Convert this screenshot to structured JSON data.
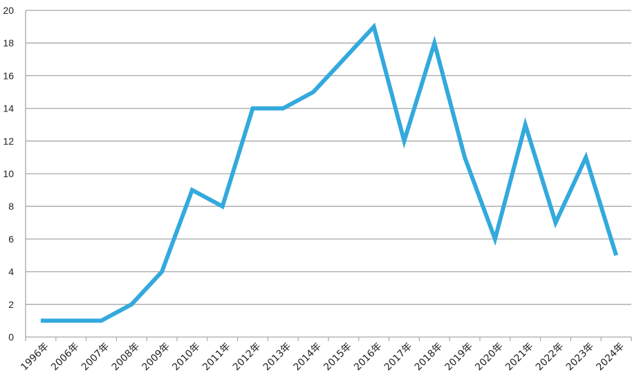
{
  "chart_data": {
    "type": "line",
    "title": "",
    "xlabel": "",
    "ylabel": "",
    "categories": [
      "1996年",
      "2006年",
      "2007年",
      "2008年",
      "2009年",
      "2010年",
      "2011年",
      "2012年",
      "2013年",
      "2014年",
      "2015年",
      "2016年",
      "2017年",
      "2018年",
      "2019年",
      "2020年",
      "2021年",
      "2022年",
      "2023年",
      "2024年"
    ],
    "series": [
      {
        "values": [
          1,
          1,
          1,
          2,
          4,
          9,
          8,
          14,
          14,
          15,
          17,
          19,
          12,
          18,
          11,
          6,
          13,
          7,
          11,
          5
        ],
        "color": "#33a9dd"
      }
    ],
    "ylim": [
      0,
      20
    ],
    "yticks": [
      0,
      2,
      4,
      6,
      8,
      10,
      12,
      14,
      16,
      18,
      20
    ],
    "grid": true,
    "legend": "none"
  }
}
